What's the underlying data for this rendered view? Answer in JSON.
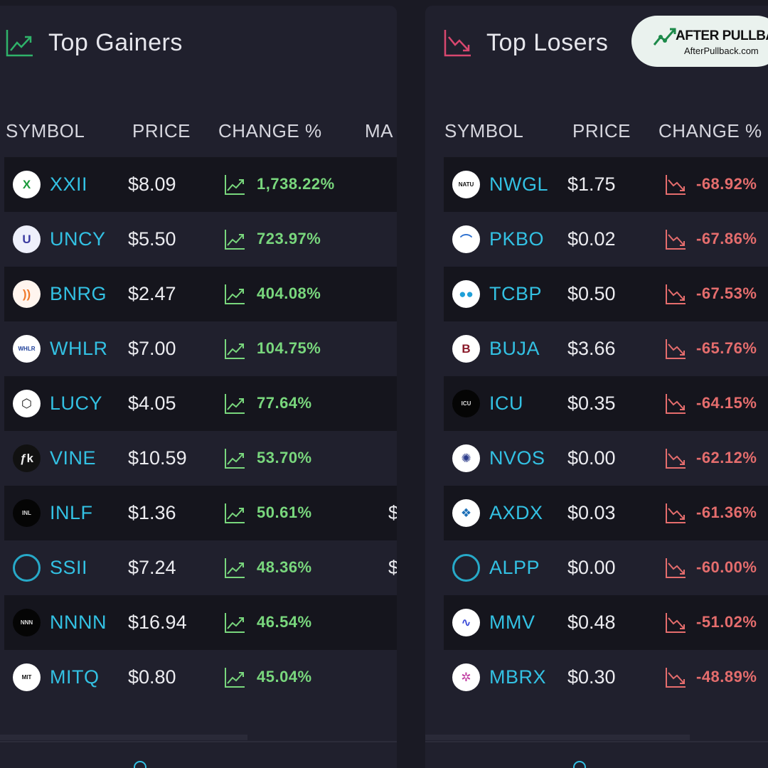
{
  "gainers": {
    "title": "Top Gainers",
    "header_icon": "trending-up-icon",
    "columns": [
      "SYMBOL",
      "PRICE",
      "CHANGE %",
      "MA"
    ],
    "rows": [
      {
        "symbol": "XXII",
        "price": "$8.09",
        "change": "1,738.22%",
        "extra": "",
        "logo_text": "",
        "logo_bg": "#ffffff",
        "logo_fg": "#1a9a3a",
        "logo_glyph": "X"
      },
      {
        "symbol": "UNCY",
        "price": "$5.50",
        "change": "723.97%",
        "extra": "",
        "logo_text": "",
        "logo_bg": "#eef0fb",
        "logo_fg": "#3a3aa0",
        "logo_glyph": "U"
      },
      {
        "symbol": "BNRG",
        "price": "$2.47",
        "change": "404.08%",
        "extra": "",
        "logo_text": "",
        "logo_bg": "#fff5ee",
        "logo_fg": "#f07a2a",
        "logo_glyph": "))"
      },
      {
        "symbol": "WHLR",
        "price": "$7.00",
        "change": "104.75%",
        "extra": "",
        "logo_text": "WHLR",
        "logo_bg": "#ffffff",
        "logo_fg": "#1d3f9a",
        "logo_glyph": ""
      },
      {
        "symbol": "LUCY",
        "price": "$4.05",
        "change": "77.64%",
        "extra": "",
        "logo_text": "",
        "logo_bg": "#ffffff",
        "logo_fg": "#111111",
        "logo_glyph": "⬡"
      },
      {
        "symbol": "VINE",
        "price": "$10.59",
        "change": "53.70%",
        "extra": "",
        "logo_text": "",
        "logo_bg": "#111111",
        "logo_fg": "#eeeeee",
        "logo_glyph": "ƒk"
      },
      {
        "symbol": "INLF",
        "price": "$1.36",
        "change": "50.61%",
        "extra": "$",
        "logo_text": "INL",
        "logo_bg": "#050505",
        "logo_fg": "#dddddd",
        "logo_glyph": ""
      },
      {
        "symbol": "SSII",
        "price": "$7.24",
        "change": "48.36%",
        "extra": "$",
        "logo_text": "",
        "logo_bg": "ring",
        "logo_fg": "#27a9c8",
        "logo_glyph": ""
      },
      {
        "symbol": "NNNN",
        "price": "$16.94",
        "change": "46.54%",
        "extra": "",
        "logo_text": "NNN",
        "logo_bg": "#050505",
        "logo_fg": "#dddddd",
        "logo_glyph": ""
      },
      {
        "symbol": "MITQ",
        "price": "$0.80",
        "change": "45.04%",
        "extra": "",
        "logo_text": "MIT",
        "logo_bg": "#ffffff",
        "logo_fg": "#111111",
        "logo_glyph": ""
      }
    ]
  },
  "losers": {
    "title": "Top Losers",
    "header_icon": "trending-down-icon",
    "columns": [
      "SYMBOL",
      "PRICE",
      "CHANGE %"
    ],
    "rows": [
      {
        "symbol": "NWGL",
        "price": "$1.75",
        "change": "-68.92%",
        "logo_text": "NATU",
        "logo_bg": "#ffffff",
        "logo_fg": "#111111",
        "logo_glyph": ""
      },
      {
        "symbol": "PKBO",
        "price": "$0.02",
        "change": "-67.86%",
        "logo_text": "",
        "logo_bg": "#ffffff",
        "logo_fg": "#2a6fd0",
        "logo_glyph": "⌒"
      },
      {
        "symbol": "TCBP",
        "price": "$0.50",
        "change": "-67.53%",
        "logo_text": "",
        "logo_bg": "#ffffff",
        "logo_fg": "#1fa0d8",
        "logo_glyph": "●●"
      },
      {
        "symbol": "BUJA",
        "price": "$3.66",
        "change": "-65.76%",
        "logo_text": "",
        "logo_bg": "#ffffff",
        "logo_fg": "#8a1a2a",
        "logo_glyph": "B"
      },
      {
        "symbol": "ICU",
        "price": "$0.35",
        "change": "-64.15%",
        "logo_text": "ICU",
        "logo_bg": "#050505",
        "logo_fg": "#dddddd",
        "logo_glyph": ""
      },
      {
        "symbol": "NVOS",
        "price": "$0.00",
        "change": "-62.12%",
        "logo_text": "",
        "logo_bg": "#ffffff",
        "logo_fg": "#2a3a8a",
        "logo_glyph": "✺"
      },
      {
        "symbol": "AXDX",
        "price": "$0.03",
        "change": "-61.36%",
        "logo_text": "",
        "logo_bg": "#ffffff",
        "logo_fg": "#1d70b8",
        "logo_glyph": "❖"
      },
      {
        "symbol": "ALPP",
        "price": "$0.00",
        "change": "-60.00%",
        "logo_text": "",
        "logo_bg": "ring",
        "logo_fg": "#27a9c8",
        "logo_glyph": ""
      },
      {
        "symbol": "MMV",
        "price": "$0.48",
        "change": "-51.02%",
        "logo_text": "",
        "logo_bg": "#ffffff",
        "logo_fg": "#3a4ad8",
        "logo_glyph": "∿"
      },
      {
        "symbol": "MBRX",
        "price": "$0.30",
        "change": "-48.89%",
        "logo_text": "",
        "logo_bg": "#ffffff",
        "logo_fg": "#c03aa0",
        "logo_glyph": "✲"
      }
    ]
  },
  "brand": {
    "name": "AFTER PULLBACK",
    "url": "AfterPullback.com",
    "icon": "trending-up-logo-icon"
  },
  "colors": {
    "gain": "#79d77d",
    "loss": "#e56d6d",
    "symbol": "#33c1e3",
    "gainer_header_icon": "#2fb36a",
    "loser_header_icon": "#d9476f"
  }
}
